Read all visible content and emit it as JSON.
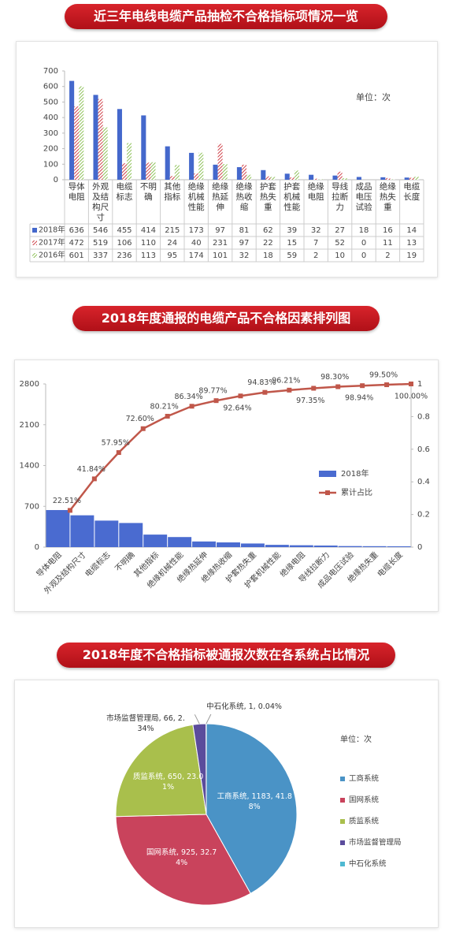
{
  "chart_data": [
    {
      "type": "grouped_bar_table",
      "title": "近三年电线电缆产品抽检不合格指标项情况一览",
      "annotation": "单位：次",
      "categories": [
        "导体电阻",
        "外观及结构尺寸",
        "电缆标志",
        "不明确",
        "其他指标",
        "绝缘机械性能",
        "绝缘热延伸",
        "绝缘热收缩",
        "护套热失重",
        "护套机械性能",
        "绝缘电阻",
        "导线拉断力",
        "成品电压试验",
        "绝缘热失重",
        "电缆长度"
      ],
      "series": [
        {
          "name": "2018年",
          "color": "#4468cc",
          "hatch": false,
          "values": [
            636,
            546,
            455,
            414,
            215,
            173,
            97,
            81,
            62,
            39,
            32,
            27,
            18,
            16,
            14
          ]
        },
        {
          "name": "2017年",
          "color": "#d0424a",
          "hatch": true,
          "values": [
            472,
            519,
            106,
            110,
            24,
            40,
            231,
            97,
            22,
            15,
            7,
            52,
            0,
            11,
            13
          ]
        },
        {
          "name": "2016年",
          "color": "#8fc25a",
          "hatch": true,
          "values": [
            601,
            337,
            236,
            113,
            95,
            174,
            101,
            32,
            18,
            59,
            2,
            10,
            0,
            2,
            19
          ]
        }
      ],
      "ylim": [
        0,
        700
      ],
      "yticks": [
        0,
        100,
        200,
        300,
        400,
        500,
        600,
        700
      ],
      "grid": false
    },
    {
      "type": "pareto",
      "title": "2018年度通报的电缆产品不合格因素排列图",
      "categories": [
        "导体电阻",
        "外观及结构尺寸",
        "电缆标志",
        "不明确",
        "其他指标",
        "绝缘机械性能",
        "绝缘热延伸",
        "绝缘热收缩",
        "护套热失重",
        "护套机械性能",
        "绝缘电阻",
        "导线拉断力",
        "成品电压试验",
        "绝缘热失重",
        "电缆长度"
      ],
      "series": [
        {
          "name": "2018年",
          "color": "#4a6bd0",
          "values": [
            636,
            546,
            455,
            414,
            215,
            173,
            97,
            81,
            62,
            39,
            32,
            27,
            18,
            16,
            14
          ]
        },
        {
          "name": "累计占比",
          "color": "#c0574a",
          "axis": "y2",
          "values": [
            0.2251,
            0.4184,
            0.5795,
            0.726,
            0.8021,
            0.8634,
            0.8977,
            0.9264,
            0.9483,
            0.9621,
            0.9735,
            0.983,
            0.9894,
            0.995,
            1.0
          ],
          "value_labels": [
            "22.51%",
            "41.84%",
            "57.95%",
            "72.60%",
            "80.21%",
            "86.34%",
            "89.77%",
            "92.64%",
            "94.83%",
            "96.21%",
            "97.35%",
            "98.30%",
            "98.94%",
            "99.50%",
            "100.00%"
          ]
        }
      ],
      "ylim": [
        0,
        2800
      ],
      "yticks": [
        0,
        700,
        1400,
        2100,
        2800
      ],
      "y2lim": [
        0,
        1
      ],
      "y2ticks": [
        0,
        0.2,
        0.4,
        0.6,
        0.8,
        1
      ],
      "legend": "right",
      "grid": false
    },
    {
      "type": "pie",
      "title": "2018年度不合格指标被通报次数在各系统占比情况",
      "annotation": "单位：次",
      "categories": [
        "工商系统",
        "国网系统",
        "质监系统",
        "市场监督管理局",
        "中石化系统"
      ],
      "values": [
        1183,
        925,
        650,
        66,
        1
      ],
      "value_labels": [
        "工商系统, 1183, 41.88%",
        "国网系统, 925, 32.74%",
        "质监系统, 650, 23.01%",
        "市场监督管理局, 66, 2.34%",
        "中石化系统, 1, 0.04%"
      ],
      "colors": [
        "#4a93c6",
        "#c9435c",
        "#a9bf4c",
        "#5b4c9c",
        "#4fb9d2"
      ],
      "legend": "right"
    }
  ]
}
